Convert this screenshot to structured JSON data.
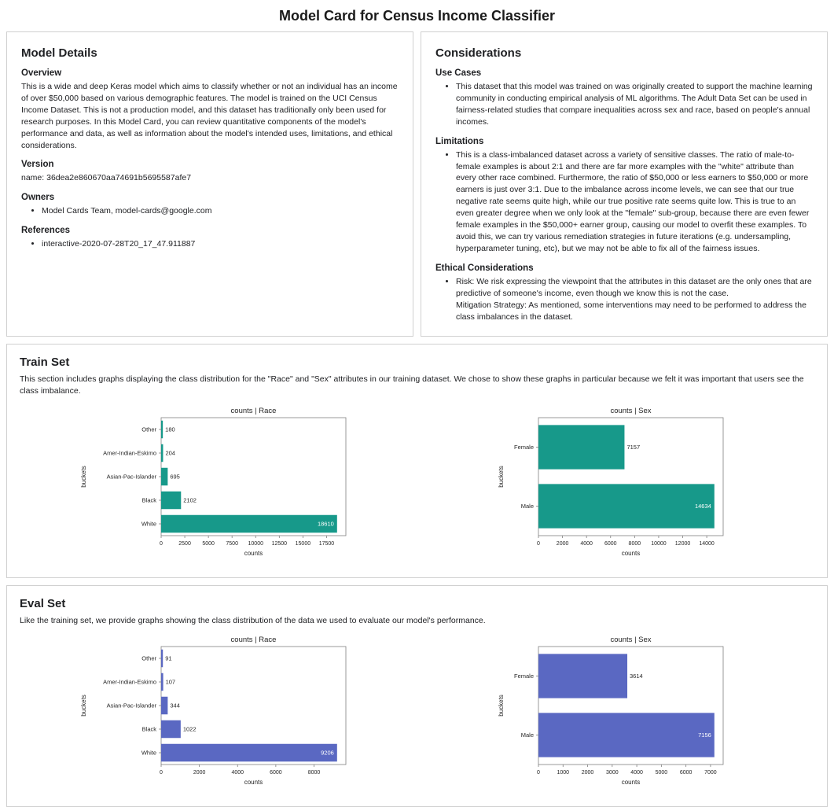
{
  "page_title": "Model Card for Census Income Classifier",
  "model_details": {
    "title": "Model Details",
    "overview_heading": "Overview",
    "overview_text": "This is a wide and deep Keras model which aims to classify whether or not an individual has an income of over $50,000 based on various demographic features. The model is trained on the UCI Census Income Dataset. This is not a production model, and this dataset has traditionally only been used for research purposes. In this Model Card, you can review quantitative components of the model's performance and data, as well as information about the model's intended uses, limitations, and ethical considerations.",
    "version_heading": "Version",
    "version_text": "name: 36dea2e860670aa74691b5695587afe7",
    "owners_heading": "Owners",
    "owners_items": [
      "Model Cards Team, model-cards@google.com"
    ],
    "references_heading": "References",
    "references_items": [
      "interactive-2020-07-28T20_17_47.911887"
    ]
  },
  "considerations": {
    "title": "Considerations",
    "use_cases_heading": "Use Cases",
    "use_cases_items": [
      "This dataset that this model was trained on was originally created to support the machine learning community in conducting empirical analysis of ML algorithms. The Adult Data Set can be used in fairness-related studies that compare inequalities across sex and race, based on people's annual incomes."
    ],
    "limitations_heading": "Limitations",
    "limitations_items": [
      "This is a class-imbalanced dataset across a variety of sensitive classes. The ratio of male-to-female examples is about 2:1 and there are far more examples with the \"white\" attribute than every other race combined. Furthermore, the ratio of $50,000 or less earners to $50,000 or more earners is just over 3:1. Due to the imbalance across income levels, we can see that our true negative rate seems quite high, while our true positive rate seems quite low. This is true to an even greater degree when we only look at the \"female\" sub-group, because there are even fewer female examples in the $50,000+ earner group, causing our model to overfit these examples. To avoid this, we can try various remediation strategies in future iterations (e.g. undersampling, hyperparameter tuning, etc), but we may not be able to fix all of the fairness issues."
    ],
    "ethical_heading": "Ethical Considerations",
    "ethical_items": [
      "Risk: We risk expressing the viewpoint that the attributes in this dataset are the only ones that are predictive of someone's income, even though we know this is not the case.\nMitigation Strategy: As mentioned, some interventions may need to be performed to address the class imbalances in the dataset."
    ]
  },
  "train_set": {
    "title": "Train Set",
    "description": "This section includes graphs displaying the class distribution for the \"Race\" and \"Sex\" attributes in our training dataset. We chose to show these graphs in particular because we felt it was important that users see the class imbalance."
  },
  "eval_set": {
    "title": "Eval Set",
    "description": "Like the training set, we provide graphs showing the class distribution of the data we used to evaluate our model's performance."
  },
  "chart_data": [
    {
      "id": "train-race",
      "type": "bar",
      "orientation": "horizontal",
      "title": "counts | Race",
      "xlabel": "counts",
      "ylabel": "buckets",
      "categories": [
        "Other",
        "Amer-Indian-Eskimo",
        "Asian-Pac-Islander",
        "Black",
        "White"
      ],
      "values": [
        180,
        204,
        695,
        2102,
        18610
      ],
      "xticks": [
        0,
        2500,
        5000,
        7500,
        10000,
        12500,
        15000,
        17500
      ],
      "xlim": [
        0,
        19541
      ],
      "bar_color": "#17998a",
      "inside_label_color": "#ffffff",
      "legend": "off",
      "grid": "off"
    },
    {
      "id": "train-sex",
      "type": "bar",
      "orientation": "horizontal",
      "title": "counts | Sex",
      "xlabel": "counts",
      "ylabel": "buckets",
      "categories": [
        "Female",
        "Male"
      ],
      "values": [
        7157,
        14634
      ],
      "xticks": [
        0,
        2000,
        4000,
        6000,
        8000,
        10000,
        12000,
        14000
      ],
      "xlim": [
        0,
        15366
      ],
      "bar_color": "#17998a",
      "inside_label_color": "#ffffff",
      "legend": "off",
      "grid": "off"
    },
    {
      "id": "eval-race",
      "type": "bar",
      "orientation": "horizontal",
      "title": "counts | Race",
      "xlabel": "counts",
      "ylabel": "buckets",
      "categories": [
        "Other",
        "Amer-Indian-Eskimo",
        "Asian-Pac-Islander",
        "Black",
        "White"
      ],
      "values": [
        91,
        107,
        344,
        1022,
        9206
      ],
      "xticks": [
        0,
        2000,
        4000,
        6000,
        8000
      ],
      "xlim": [
        0,
        9666
      ],
      "bar_color": "#5a68c2",
      "inside_label_color": "#ffffff",
      "legend": "off",
      "grid": "off"
    },
    {
      "id": "eval-sex",
      "type": "bar",
      "orientation": "horizontal",
      "title": "counts | Sex",
      "xlabel": "counts",
      "ylabel": "buckets",
      "categories": [
        "Female",
        "Male"
      ],
      "values": [
        3614,
        7156
      ],
      "xticks": [
        0,
        1000,
        2000,
        3000,
        4000,
        5000,
        6000,
        7000
      ],
      "xlim": [
        0,
        7514
      ],
      "bar_color": "#5a68c2",
      "inside_label_color": "#ffffff",
      "legend": "off",
      "grid": "off"
    }
  ]
}
